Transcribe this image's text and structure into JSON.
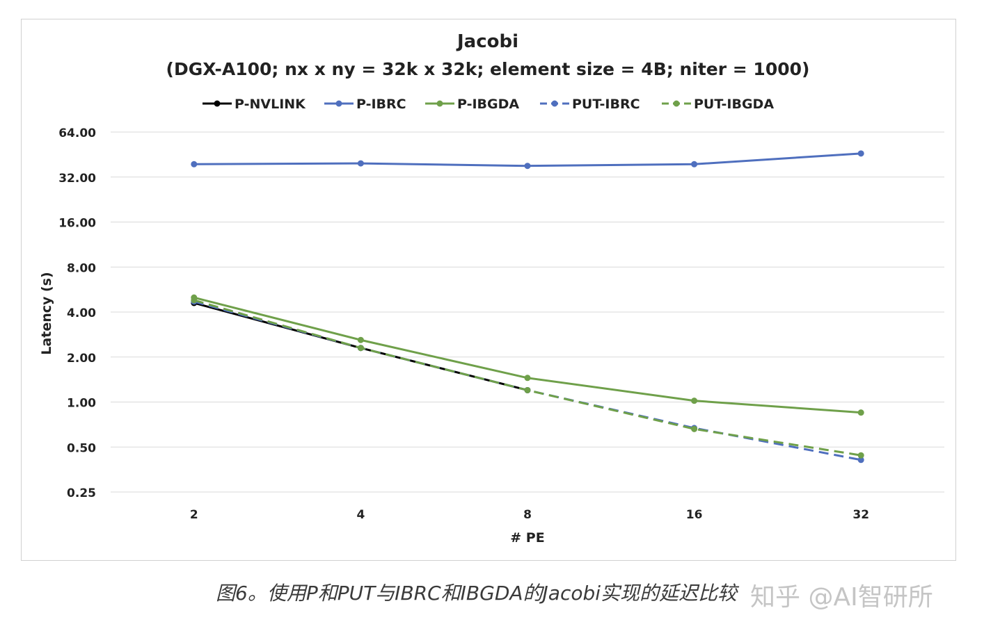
{
  "chart_data": {
    "type": "line",
    "title": "Jacobi",
    "subtitle": "(DGX-A100; nx x ny = 32k x 32k; element size = 4B; niter = 1000)",
    "xlabel": "# PE",
    "ylabel": "Latency (s)",
    "x": [
      "2",
      "4",
      "8",
      "16",
      "32"
    ],
    "yscale": "log2",
    "ylim": [
      0.25,
      64
    ],
    "yticks": [
      "0.25",
      "0.50",
      "1.00",
      "2.00",
      "4.00",
      "8.00",
      "16.00",
      "32.00",
      "64.00"
    ],
    "grid": true,
    "legend_position": "top",
    "series": [
      {
        "name": "P-NVLINK",
        "color": "#000000",
        "dashed": false,
        "values": [
          4.6,
          2.3,
          1.2,
          null,
          null
        ]
      },
      {
        "name": "P-IBRC",
        "color": "#4f6fbe",
        "dashed": false,
        "values": [
          39,
          39.5,
          38,
          39,
          46
        ]
      },
      {
        "name": "P-IBGDA",
        "color": "#6fa04a",
        "dashed": false,
        "values": [
          5.0,
          2.6,
          1.45,
          1.02,
          0.85
        ]
      },
      {
        "name": "PUT-IBRC",
        "color": "#4f6fbe",
        "dashed": true,
        "values": [
          4.7,
          2.3,
          1.2,
          0.67,
          0.41
        ]
      },
      {
        "name": "PUT-IBGDA",
        "color": "#6fa04a",
        "dashed": true,
        "values": [
          4.8,
          2.3,
          1.2,
          0.66,
          0.44
        ]
      }
    ]
  },
  "caption": "图6。使用P和PUT与IBRC和IBGDA的Jacobi实现的延迟比较",
  "watermark": "知乎 @AI智研所"
}
